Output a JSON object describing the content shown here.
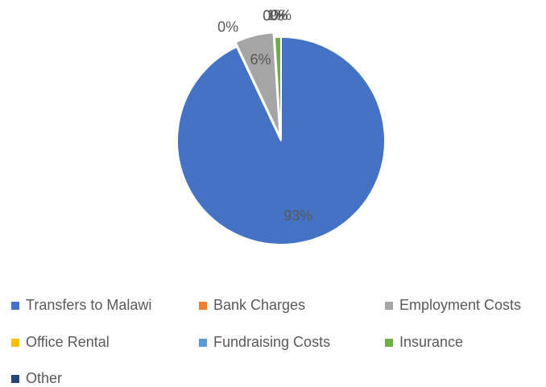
{
  "chart_data": {
    "type": "pie",
    "categories": [
      "Transfers to Malawi",
      "Bank Charges",
      "Employment Costs",
      "Office Rental",
      "Fundraising Costs",
      "Insurance",
      "Other"
    ],
    "values": [
      93,
      0,
      6,
      0,
      0,
      1,
      0
    ],
    "value_labels": [
      "93%",
      "0%",
      "6%",
      "0%",
      "0%",
      "1%",
      "0%"
    ],
    "colors": [
      "#4472c4",
      "#ed7d31",
      "#a5a5a5",
      "#ffc000",
      "#5b9bd5",
      "#70ad47",
      "#264478"
    ],
    "legend": "bottom"
  }
}
